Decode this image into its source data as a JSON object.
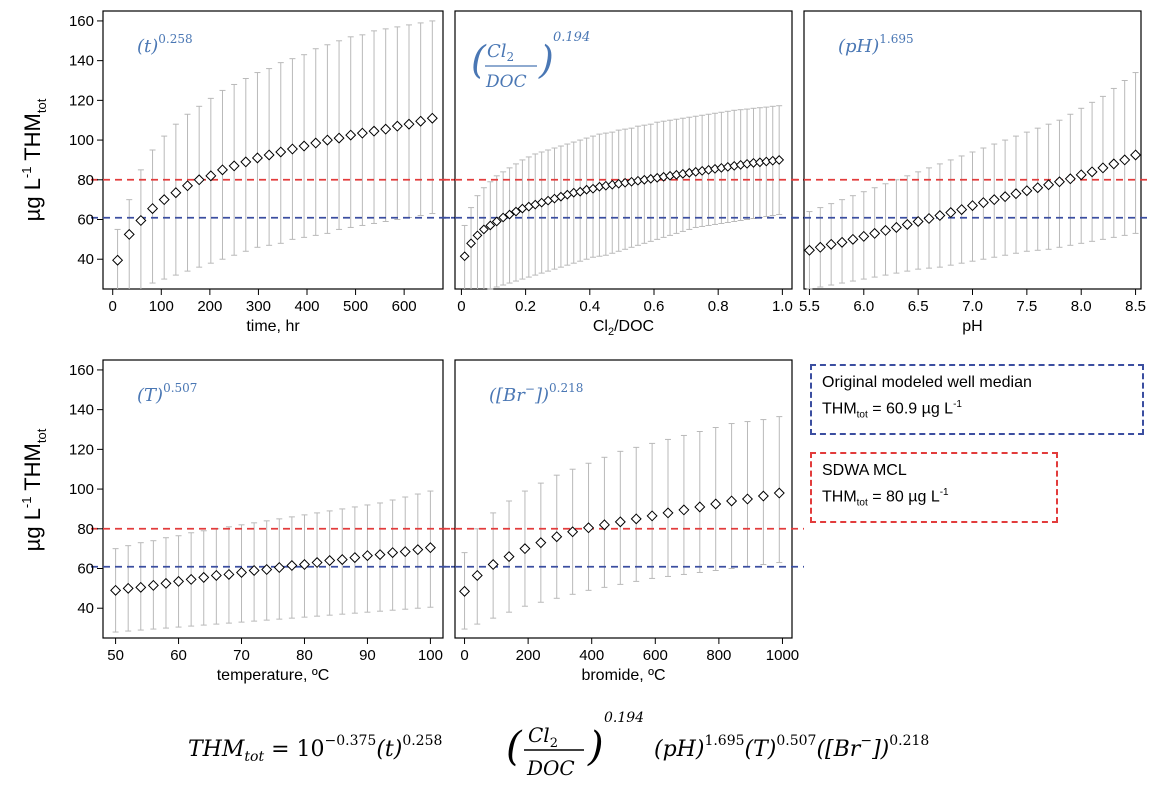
{
  "y_axis_label": {
    "prefix": "µg L",
    "sup": "-1",
    "mid": " THM",
    "sub": "tot"
  },
  "reference_lines": {
    "median_color": "#3b4ea0",
    "mcl_color": "#e23c3c",
    "median_value": 60.9,
    "mcl_value": 80
  },
  "legend": {
    "median": {
      "line1": "Original modeled well median",
      "line2_prefix": "THM",
      "line2_sub": "tot",
      "line2_mid": " = 60.9 µg L",
      "line2_sup": "-1"
    },
    "mcl": {
      "line1": "SDWA MCL",
      "line2_prefix": "THM",
      "line2_sub": "tot",
      "line2_mid": " = 80 µg L",
      "line2_sup": "-1"
    }
  },
  "equation": {
    "lhs": "THM",
    "lhs_sub": "tot",
    "equals": " = 10",
    "exp0": "−0.375",
    "t_term": "(t)",
    "t_exp": "0.258",
    "frac_num": "Cl",
    "frac_num_sub": "2",
    "frac_den": "DOC",
    "frac_exp": "0.194",
    "rest1": "(pH)",
    "rest1_exp": "1.695",
    "rest2": "(T)",
    "rest2_exp": "0.507",
    "rest3": "([Br",
    "rest3_sup": "−",
    "rest3_close": "])",
    "rest3_exp": "0.218"
  },
  "chart_data": [
    {
      "type": "scatter",
      "id": "time",
      "xlabel": "time, hr",
      "xlim": [
        -20,
        680
      ],
      "xticks": [
        0,
        100,
        200,
        300,
        400,
        500,
        600
      ],
      "ylim": [
        25,
        165
      ],
      "yticks": [
        40,
        60,
        80,
        100,
        120,
        140,
        160
      ],
      "annotation": {
        "base": "(t)",
        "exp": "0.258"
      },
      "x": [
        10,
        34,
        58,
        82,
        106,
        130,
        154,
        178,
        202,
        226,
        250,
        274,
        298,
        322,
        346,
        370,
        394,
        418,
        442,
        466,
        490,
        514,
        538,
        562,
        586,
        610,
        634,
        658
      ],
      "y": [
        39.5,
        52.5,
        59.5,
        65.5,
        70,
        73.5,
        77,
        80,
        82,
        85,
        87,
        89,
        91,
        92.5,
        94,
        95.5,
        97,
        98.5,
        100,
        101,
        102.5,
        103.5,
        104.5,
        105.5,
        107,
        108,
        109.5,
        111
      ],
      "err_low": [
        null,
        null,
        null,
        28,
        30,
        32,
        34,
        36,
        38,
        40,
        42,
        44,
        46,
        47,
        48,
        50,
        51,
        52,
        53,
        55,
        56,
        57,
        58,
        59,
        60,
        61,
        62,
        63
      ],
      "err_high": [
        55,
        70,
        85,
        95,
        102,
        108,
        113,
        117,
        121,
        125,
        128,
        131,
        134,
        136,
        139,
        141,
        143,
        146,
        148,
        150,
        152,
        153,
        155,
        156,
        157,
        158,
        159,
        160
      ]
    },
    {
      "type": "scatter",
      "id": "cl2doc",
      "xlabel": "Cl2/DOC",
      "xlabel_main": "Cl",
      "xlabel_sub": "2",
      "xlabel_rest": "/DOC",
      "xlim": [
        -0.02,
        1.03
      ],
      "xticks": [
        0,
        0.2,
        0.4,
        0.6,
        0.8,
        1.0
      ],
      "xtick_labels": [
        "0",
        "0.2",
        "0.4",
        "0.6",
        "0.8",
        "1.0"
      ],
      "ylim": [
        25,
        165
      ],
      "yticks": [
        40,
        60,
        80,
        100,
        120,
        140,
        160
      ],
      "annotation": {
        "num": "Cl",
        "num_sub": "2",
        "den": "DOC",
        "exp": "0.194"
      },
      "x": [
        0.01,
        0.03,
        0.05,
        0.07,
        0.09,
        0.11,
        0.13,
        0.15,
        0.17,
        0.19,
        0.21,
        0.23,
        0.25,
        0.27,
        0.29,
        0.31,
        0.33,
        0.35,
        0.37,
        0.39,
        0.41,
        0.43,
        0.45,
        0.47,
        0.49,
        0.51,
        0.53,
        0.55,
        0.57,
        0.59,
        0.61,
        0.63,
        0.65,
        0.67,
        0.69,
        0.71,
        0.73,
        0.75,
        0.77,
        0.79,
        0.81,
        0.83,
        0.85,
        0.87,
        0.89,
        0.91,
        0.93,
        0.95,
        0.97,
        0.99
      ],
      "y": [
        41.5,
        48,
        52,
        55,
        57,
        59,
        61,
        62.5,
        64,
        65.5,
        66.5,
        67.5,
        68.5,
        69.5,
        70.5,
        71.5,
        72.5,
        73.5,
        74,
        75,
        75.5,
        76.5,
        77,
        77.5,
        78,
        78.5,
        79,
        79.5,
        80,
        80.5,
        81,
        81.5,
        82,
        82.5,
        83,
        83.5,
        84,
        84.5,
        85,
        85.5,
        86,
        86.5,
        87,
        87.5,
        88,
        88.5,
        88.8,
        89.2,
        89.6,
        90
      ],
      "err_low": [
        null,
        null,
        null,
        null,
        25,
        26,
        27,
        28,
        29,
        30,
        31,
        32,
        33,
        34,
        35,
        36,
        37,
        38,
        39,
        40,
        41,
        41.5,
        42,
        43,
        44,
        45,
        46,
        47,
        48,
        49,
        50,
        51,
        52,
        53,
        54,
        55,
        56,
        56.5,
        57,
        57.5,
        58,
        58.5,
        59,
        59.5,
        60,
        60.5,
        61,
        61.5,
        62,
        62.5
      ],
      "err_high": [
        57,
        66,
        72,
        76,
        79,
        82,
        84,
        86,
        88,
        90,
        91.5,
        93,
        94,
        95,
        96,
        97,
        98,
        99,
        100,
        101,
        102,
        103,
        103.5,
        104,
        105,
        105.5,
        106,
        107,
        107.5,
        108,
        109,
        109.5,
        110,
        110.5,
        111,
        111.5,
        112,
        112.5,
        113,
        113.5,
        114,
        114.5,
        115,
        115.3,
        115.6,
        116,
        116.3,
        116.6,
        117,
        117.3
      ]
    },
    {
      "type": "scatter",
      "id": "ph",
      "xlabel": "pH",
      "xlim": [
        5.45,
        8.55
      ],
      "xticks": [
        5.5,
        6.0,
        6.5,
        7.0,
        7.5,
        8.0,
        8.5
      ],
      "xtick_labels": [
        "5.5",
        "6.0",
        "6.5",
        "7.0",
        "7.5",
        "8.0",
        "8.5"
      ],
      "ylim": [
        25,
        165
      ],
      "yticks": [
        40,
        60,
        80,
        100,
        120,
        140,
        160
      ],
      "annotation": {
        "base": "(pH)",
        "exp": "1.695"
      },
      "x": [
        5.5,
        5.6,
        5.7,
        5.8,
        5.9,
        6.0,
        6.1,
        6.2,
        6.3,
        6.4,
        6.5,
        6.6,
        6.7,
        6.8,
        6.9,
        7.0,
        7.1,
        7.2,
        7.3,
        7.4,
        7.5,
        7.6,
        7.7,
        7.8,
        7.9,
        8.0,
        8.1,
        8.2,
        8.3,
        8.4,
        8.5
      ],
      "y": [
        44.5,
        46,
        47.5,
        48.5,
        50,
        51.5,
        53,
        54.5,
        56,
        57.5,
        59,
        60.5,
        62,
        63.5,
        65,
        67,
        68.5,
        70,
        71.5,
        73,
        74.5,
        76,
        77.5,
        79,
        80.5,
        82.5,
        84,
        86,
        88,
        90,
        92.5
      ],
      "err_low": [
        25,
        26,
        27,
        28,
        29,
        30,
        31,
        32,
        33,
        34,
        35,
        35.5,
        36,
        37,
        38,
        39,
        40,
        41,
        42,
        43,
        44,
        44.5,
        45,
        46,
        47,
        48,
        49,
        50,
        51,
        52,
        53
      ],
      "err_high": [
        64,
        66,
        68,
        70,
        72,
        74,
        76,
        78,
        80,
        82,
        84,
        86,
        88,
        90,
        92,
        94,
        96,
        98,
        100,
        102,
        104,
        106,
        108,
        110,
        113,
        116,
        119,
        122,
        126,
        130,
        134
      ]
    },
    {
      "type": "scatter",
      "id": "temperature",
      "xlabel": "temperature, ºC",
      "xlim": [
        48,
        102
      ],
      "xticks": [
        50,
        60,
        70,
        80,
        90,
        100
      ],
      "ylim": [
        25,
        165
      ],
      "yticks": [
        40,
        60,
        80,
        100,
        120,
        140,
        160
      ],
      "annotation": {
        "base": "(T)",
        "exp": "0.507"
      },
      "x": [
        50,
        52,
        54,
        56,
        58,
        60,
        62,
        64,
        66,
        68,
        70,
        72,
        74,
        76,
        78,
        80,
        82,
        84,
        86,
        88,
        90,
        92,
        94,
        96,
        98,
        100
      ],
      "y": [
        49,
        50,
        50.5,
        51.5,
        52.5,
        53.5,
        54.5,
        55.5,
        56.5,
        57,
        58,
        59,
        59.5,
        60.5,
        61.5,
        62,
        63,
        64,
        64.5,
        65.5,
        66.5,
        67,
        68,
        68.5,
        69.5,
        70.5
      ],
      "err_low": [
        28,
        28.5,
        29,
        29.5,
        30,
        30.5,
        31,
        31.5,
        32,
        32.5,
        33,
        33.5,
        34,
        34.5,
        35,
        35.5,
        36,
        36.5,
        37,
        37.5,
        38,
        38.5,
        39,
        39.5,
        40,
        40.5
      ],
      "err_high": [
        70,
        71.5,
        73,
        74,
        75.5,
        76.5,
        78,
        79,
        80,
        81,
        82,
        83,
        84,
        85,
        86,
        87,
        88,
        89,
        90,
        91,
        92,
        93,
        94.5,
        96,
        97.5,
        99
      ]
    },
    {
      "type": "scatter",
      "id": "bromide",
      "xlabel": "bromide, ºC",
      "xlim": [
        -30,
        1030
      ],
      "xticks": [
        0,
        200,
        400,
        600,
        800,
        1000
      ],
      "ylim": [
        25,
        165
      ],
      "yticks": [
        40,
        60,
        80,
        100,
        120,
        140,
        160
      ],
      "annotation": {
        "base": "([Br",
        "sup": "−",
        "close": "])",
        "exp": "0.218"
      },
      "x": [
        0,
        40,
        90,
        140,
        190,
        240,
        290,
        340,
        390,
        440,
        490,
        540,
        590,
        640,
        690,
        740,
        790,
        840,
        890,
        940,
        990
      ],
      "y": [
        48.5,
        56.5,
        62,
        66,
        70,
        73,
        76,
        78.5,
        80.5,
        82,
        83.5,
        85,
        86.5,
        88,
        89.5,
        91,
        92.5,
        94,
        95,
        96.5,
        98
      ],
      "err_low": [
        29.5,
        32,
        35,
        38,
        41,
        43,
        45,
        47,
        49,
        50.5,
        52,
        53.5,
        55,
        56,
        57,
        58,
        59,
        60,
        61,
        62,
        63
      ],
      "err_high": [
        68,
        80,
        88,
        94,
        99,
        103,
        107,
        110,
        113,
        116,
        119,
        121,
        123,
        125,
        127,
        129,
        131,
        133,
        134,
        135,
        136.5
      ]
    }
  ]
}
